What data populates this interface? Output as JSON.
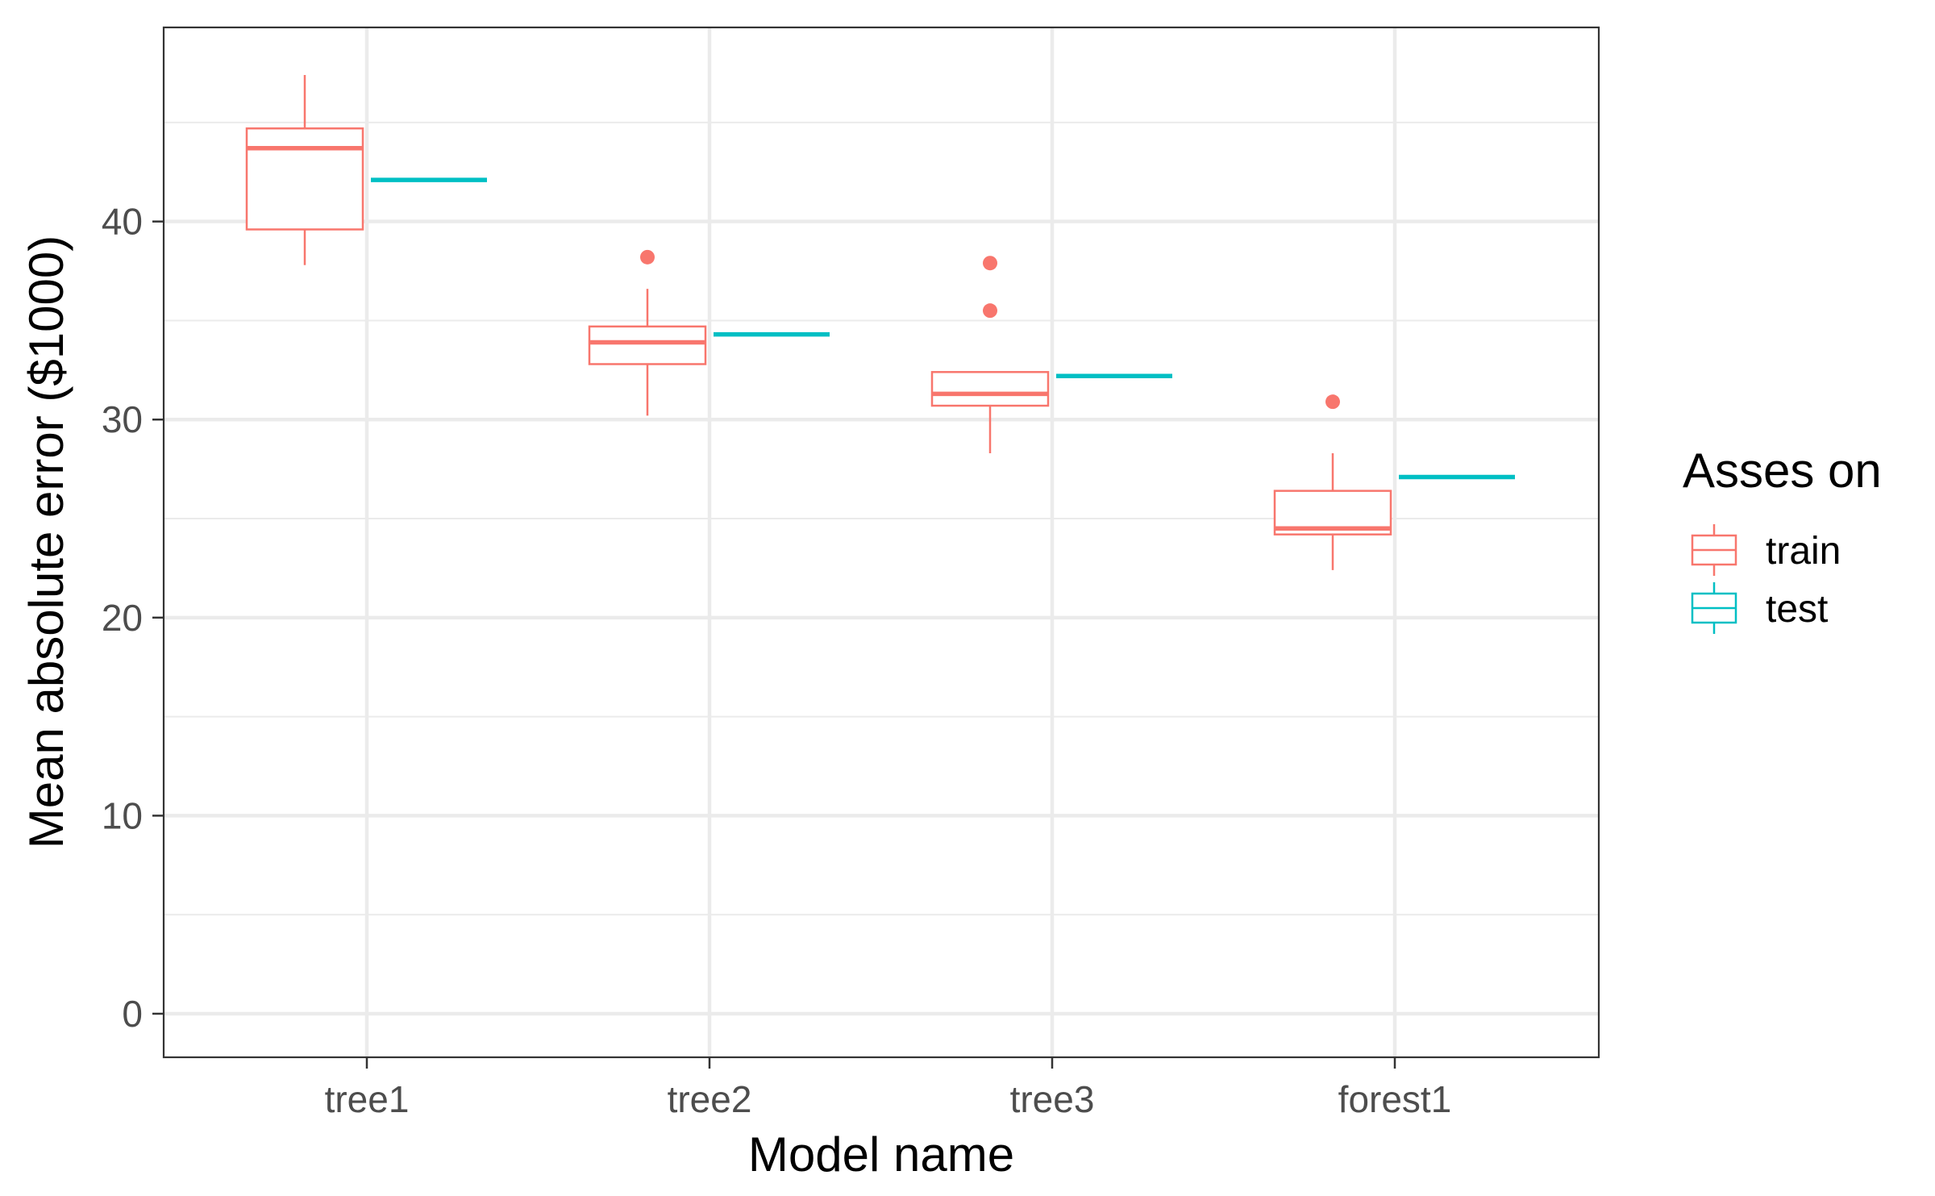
{
  "chart_data": {
    "type": "boxplot",
    "categories": [
      "tree1",
      "tree2",
      "tree3",
      "forest1"
    ],
    "xlabel": "Model name",
    "ylabel": "Mean absolute error ($1000)",
    "ylim": [
      -2.2,
      49.8
    ],
    "yticks": [
      0,
      10,
      20,
      30,
      40
    ],
    "ytick_labels": [
      "0",
      "10",
      "20",
      "30",
      "40"
    ],
    "grid": true,
    "legend": {
      "title": "Asses on",
      "placement": "right",
      "entries": [
        "train",
        "test"
      ]
    },
    "series": [
      {
        "name": "train",
        "color": "#F8766D",
        "boxes": [
          {
            "category": "tree1",
            "whisker_low": 37.8,
            "q1": 39.6,
            "median": 43.7,
            "q3": 44.7,
            "whisker_high": 47.4,
            "outliers": []
          },
          {
            "category": "tree2",
            "whisker_low": 30.2,
            "q1": 32.8,
            "median": 33.9,
            "q3": 34.7,
            "whisker_high": 36.6,
            "outliers": [
              38.2
            ]
          },
          {
            "category": "tree3",
            "whisker_low": 28.3,
            "q1": 30.7,
            "median": 31.3,
            "q3": 32.4,
            "whisker_high": 32.4,
            "outliers": [
              35.5,
              37.9
            ]
          },
          {
            "category": "forest1",
            "whisker_low": 22.4,
            "q1": 24.2,
            "median": 24.5,
            "q3": 26.4,
            "whisker_high": 28.3,
            "outliers": [
              30.9
            ]
          }
        ]
      },
      {
        "name": "test",
        "color": "#00BFC4",
        "boxes": [
          {
            "category": "tree1",
            "whisker_low": 42.1,
            "q1": 42.1,
            "median": 42.1,
            "q3": 42.1,
            "whisker_high": 42.1,
            "outliers": []
          },
          {
            "category": "tree2",
            "whisker_low": 34.3,
            "q1": 34.3,
            "median": 34.3,
            "q3": 34.3,
            "whisker_high": 34.3,
            "outliers": []
          },
          {
            "category": "tree3",
            "whisker_low": 32.2,
            "q1": 32.2,
            "median": 32.2,
            "q3": 32.2,
            "whisker_high": 32.2,
            "outliers": []
          },
          {
            "category": "forest1",
            "whisker_low": 27.1,
            "q1": 27.1,
            "median": 27.1,
            "q3": 27.1,
            "whisker_high": 27.1,
            "outliers": []
          }
        ]
      }
    ]
  }
}
